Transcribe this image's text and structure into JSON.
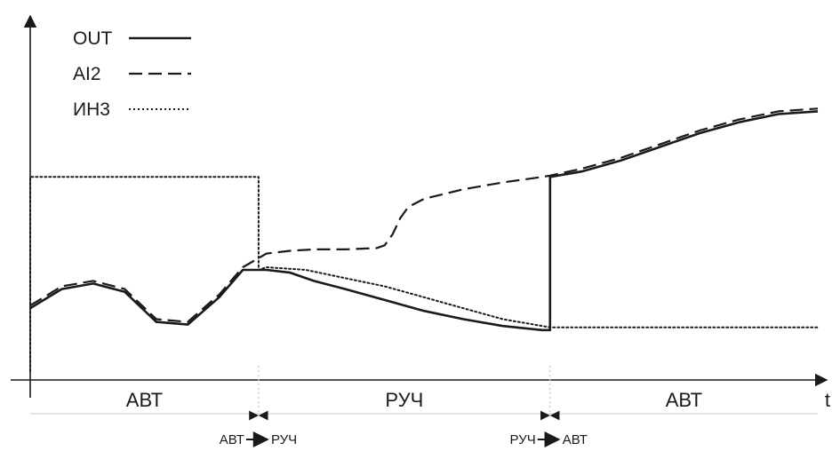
{
  "chart_data": {
    "type": "line",
    "title": "",
    "xlabel": "t",
    "ylabel": "",
    "xlim": [
      0,
      100
    ],
    "ylim": [
      0,
      100
    ],
    "grid": false,
    "legend_position": "top-left",
    "series": [
      {
        "name": "OUT",
        "style": "solid",
        "x": [
          0,
          4,
          8,
          12,
          16,
          20,
          24,
          27,
          30,
          33,
          36,
          40,
          45,
          50,
          55,
          60,
          65,
          66,
          66.01,
          70,
          75,
          80,
          85,
          90,
          95,
          100
        ],
        "y": [
          23,
          30,
          32,
          29,
          18,
          17,
          27,
          37,
          37,
          36,
          33,
          30,
          26,
          22,
          19,
          16.5,
          15,
          15,
          71,
          73,
          77,
          82,
          87,
          91,
          94,
          95
        ]
      },
      {
        "name": "AI2",
        "style": "dashed",
        "x": [
          0,
          4,
          8,
          12,
          16,
          20,
          24,
          27,
          30,
          33,
          36,
          40,
          44,
          45,
          46,
          47,
          48,
          50,
          55,
          60,
          65,
          66,
          70,
          75,
          80,
          85,
          90,
          95,
          100
        ],
        "y": [
          24,
          31,
          33,
          30,
          19,
          18,
          28,
          38,
          43,
          44,
          44.5,
          44.5,
          45,
          46,
          50,
          56,
          60,
          63,
          66.5,
          69,
          71,
          71.5,
          74,
          78,
          83,
          88,
          92,
          95,
          96
        ]
      },
      {
        "name": "ИН3",
        "style": "dotted",
        "x": [
          0,
          0,
          29,
          29,
          30,
          35,
          40,
          45,
          50,
          55,
          60,
          66,
          70,
          80,
          90,
          100
        ],
        "y": [
          0,
          71,
          71,
          37,
          38,
          37,
          34,
          31,
          27,
          23,
          19,
          16,
          16,
          16,
          16,
          16
        ]
      }
    ],
    "mode_segments": [
      {
        "label": "АВТ",
        "from": 0,
        "to": 29
      },
      {
        "label": "РУЧ",
        "from": 29,
        "to": 66
      },
      {
        "label": "АВТ",
        "from": 66,
        "to": 100
      }
    ],
    "transitions": [
      {
        "at": 29,
        "from_label": "АВТ",
        "to_label": "РУЧ"
      },
      {
        "at": 66,
        "from_label": "РУЧ",
        "to_label": "АВТ"
      }
    ]
  },
  "legend": [
    {
      "label": "OUT",
      "style": "solid"
    },
    {
      "label": "AI2",
      "style": "dashed"
    },
    {
      "label": "ИН3",
      "style": "dotted"
    }
  ],
  "colors": {
    "line": "#1a1a1a",
    "axis": "#1a1a1a",
    "boundary": "#c8c8c8"
  }
}
